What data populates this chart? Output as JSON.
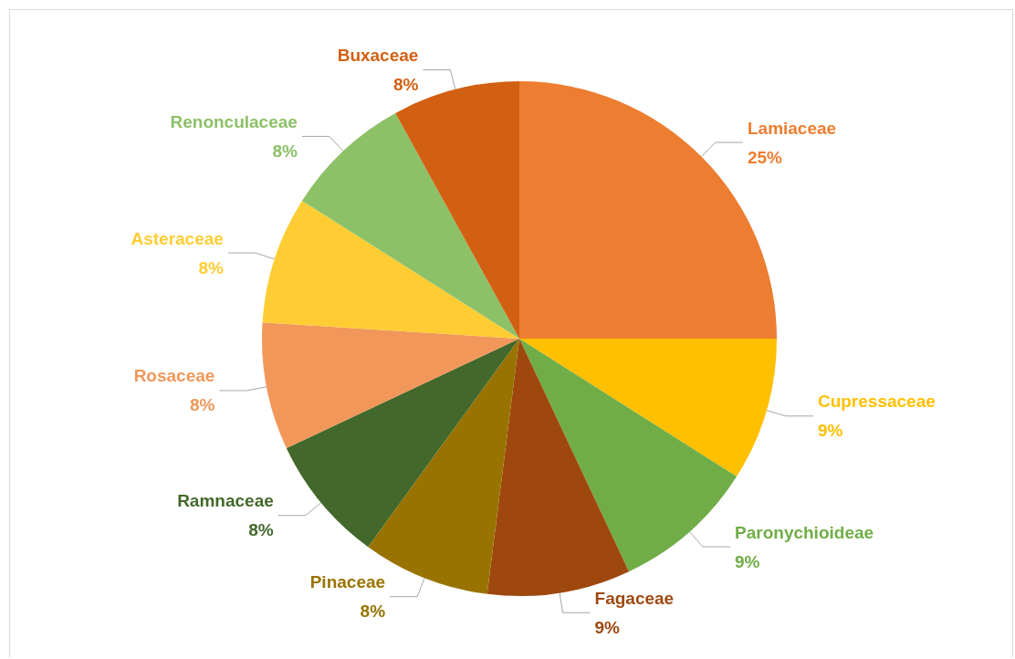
{
  "chart_data": {
    "type": "pie",
    "categories": [
      "Lamiaceae",
      "Cupressaceae",
      "Paronychioideae",
      "Fagaceae",
      "Pinaceae",
      "Ramnaceae",
      "Rosaceae",
      "Asteraceae",
      "Renonculaceae",
      "Buxaceae"
    ],
    "values": [
      25,
      9,
      9,
      9,
      8,
      8,
      8,
      8,
      8,
      8
    ],
    "colors": [
      "#ed7d31",
      "#ffc000",
      "#70ad47",
      "#9e480e",
      "#997300",
      "#43682b",
      "#f1975a",
      "#ffcd33",
      "#8cc168",
      "#d26012"
    ],
    "value_labels": [
      "25%",
      "9%",
      "9%",
      "9%",
      "8%",
      "8%",
      "8%",
      "8%",
      "8%",
      "8%"
    ],
    "legend": false
  }
}
